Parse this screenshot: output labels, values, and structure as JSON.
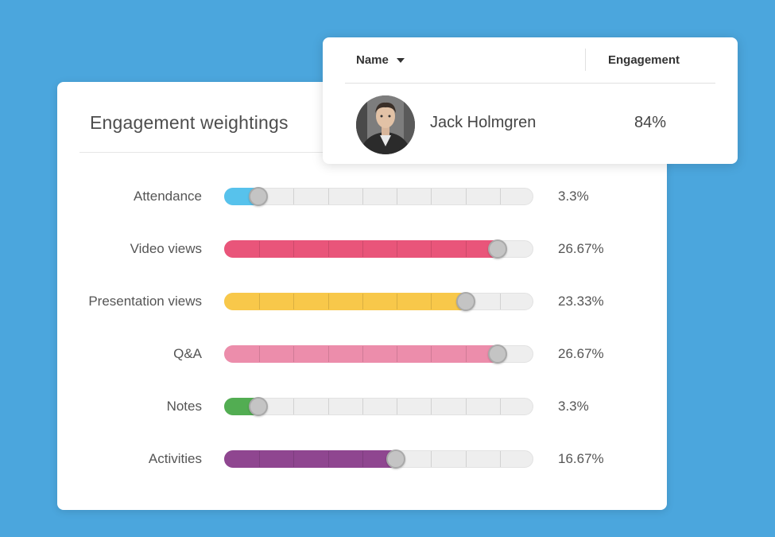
{
  "weightings": {
    "title": "Engagement weightings",
    "rows": [
      {
        "label": "Attendance",
        "value": "3.3%",
        "level": 0.107,
        "color": "#57c2ec"
      },
      {
        "label": "Video views",
        "value": "26.67%",
        "level": 0.883,
        "color": "#e9557a"
      },
      {
        "label": "Presentation views",
        "value": "23.33%",
        "level": 0.779,
        "color": "#f8c84a"
      },
      {
        "label": "Q&A",
        "value": "26.67%",
        "level": 0.883,
        "color": "#ec8dab"
      },
      {
        "label": "Notes",
        "value": "3.3%",
        "level": 0.107,
        "color": "#52ad52"
      },
      {
        "label": "Activities",
        "value": "16.67%",
        "level": 0.552,
        "color": "#8f4690"
      }
    ]
  },
  "table": {
    "name_header": "Name",
    "engagement_header": "Engagement",
    "rows": [
      {
        "name": "Jack Holmgren",
        "engagement": "84%"
      }
    ]
  }
}
